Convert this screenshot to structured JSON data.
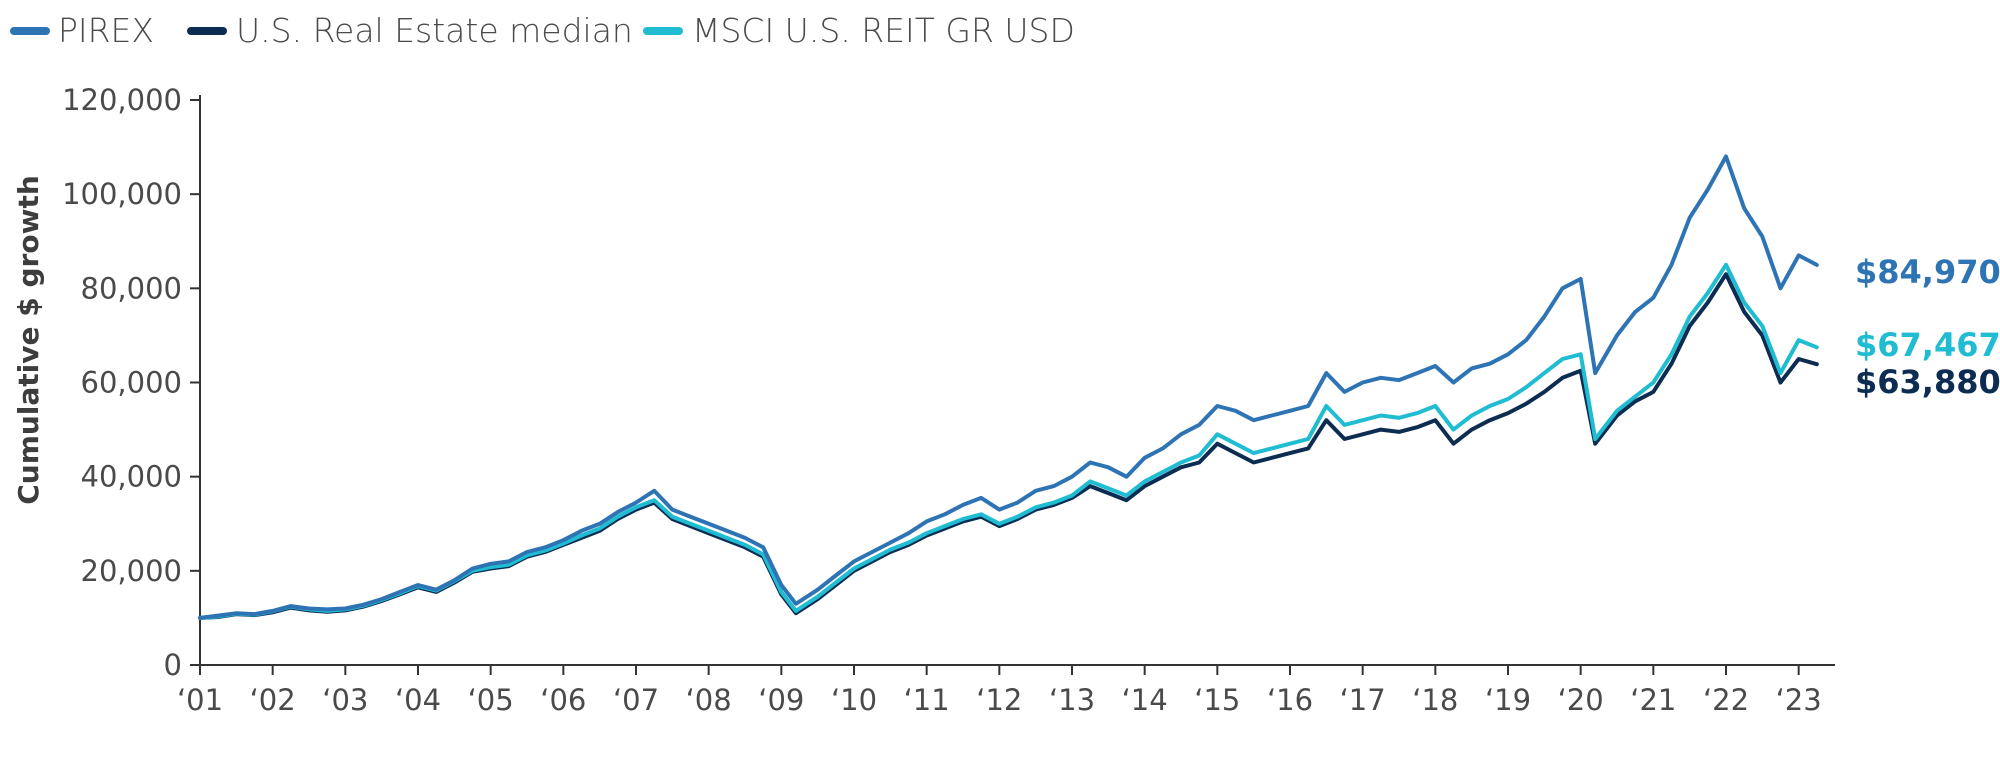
{
  "chart_data": {
    "type": "line",
    "title": "",
    "xlabel": "",
    "ylabel": "Cumulative $ growth",
    "ylim": [
      0,
      120000
    ],
    "xlim": [
      2001.0,
      2023.5
    ],
    "y_ticks": [
      0,
      20000,
      40000,
      60000,
      80000,
      100000,
      120000
    ],
    "y_tick_labels": [
      "0",
      "20,000",
      "40,000",
      "60,000",
      "80,000",
      "100,000",
      "120,000"
    ],
    "x_ticks": [
      2001,
      2002,
      2003,
      2004,
      2005,
      2006,
      2007,
      2008,
      2009,
      2010,
      2011,
      2012,
      2013,
      2014,
      2015,
      2016,
      2017,
      2018,
      2019,
      2020,
      2021,
      2022,
      2023
    ],
    "x_tick_labels": [
      "‘01",
      "‘02",
      "‘03",
      "‘04",
      "‘05",
      "‘06",
      "‘07",
      "‘08",
      "‘09",
      "‘10",
      "‘11",
      "‘12",
      "‘13",
      "‘14",
      "‘15",
      "‘16",
      "‘17",
      "‘18",
      "‘19",
      "‘20",
      "‘21",
      "‘22",
      "‘23"
    ],
    "legend_position": "top-left",
    "grid": false,
    "series": [
      {
        "name": "PIREX",
        "color": "#2e74b5",
        "end_label": "$84,970",
        "x": [
          2001.0,
          2001.25,
          2001.5,
          2001.75,
          2002.0,
          2002.25,
          2002.5,
          2002.75,
          2003.0,
          2003.25,
          2003.5,
          2003.75,
          2004.0,
          2004.25,
          2004.5,
          2004.75,
          2005.0,
          2005.25,
          2005.5,
          2005.75,
          2006.0,
          2006.25,
          2006.5,
          2006.75,
          2007.0,
          2007.25,
          2007.5,
          2007.75,
          2008.0,
          2008.25,
          2008.5,
          2008.75,
          2009.0,
          2009.2,
          2009.5,
          2009.75,
          2010.0,
          2010.25,
          2010.5,
          2010.75,
          2011.0,
          2011.25,
          2011.5,
          2011.75,
          2012.0,
          2012.25,
          2012.5,
          2012.75,
          2013.0,
          2013.25,
          2013.5,
          2013.75,
          2014.0,
          2014.25,
          2014.5,
          2014.75,
          2015.0,
          2015.25,
          2015.5,
          2015.75,
          2016.0,
          2016.25,
          2016.5,
          2016.75,
          2017.0,
          2017.25,
          2017.5,
          2017.75,
          2018.0,
          2018.25,
          2018.5,
          2018.75,
          2019.0,
          2019.25,
          2019.5,
          2019.75,
          2020.0,
          2020.2,
          2020.5,
          2020.75,
          2021.0,
          2021.25,
          2021.5,
          2021.75,
          2022.0,
          2022.25,
          2022.5,
          2022.75,
          2023.0,
          2023.25
        ],
        "y": [
          10000,
          10500,
          11000,
          10800,
          11500,
          12500,
          12000,
          11800,
          12000,
          12800,
          14000,
          15500,
          17000,
          16000,
          18000,
          20500,
          21500,
          22000,
          24000,
          25000,
          26500,
          28500,
          30000,
          32500,
          34500,
          37000,
          33000,
          31500,
          30000,
          28500,
          27000,
          25000,
          17000,
          13000,
          16000,
          19000,
          22000,
          24000,
          26000,
          28000,
          30500,
          32000,
          34000,
          35500,
          33000,
          34500,
          37000,
          38000,
          40000,
          43000,
          42000,
          40000,
          44000,
          46000,
          49000,
          51000,
          55000,
          54000,
          52000,
          53000,
          54000,
          55000,
          62000,
          58000,
          60000,
          61000,
          60500,
          62000,
          63500,
          60000,
          63000,
          64000,
          66000,
          69000,
          74000,
          80000,
          82000,
          62000,
          70000,
          75000,
          78000,
          85000,
          95000,
          101000,
          108000,
          97000,
          91000,
          80000,
          87000,
          84970
        ]
      },
      {
        "name": "U.S. Real Estate median",
        "color": "#0c2c52",
        "end_label": "$63,880",
        "x": [
          2001.0,
          2001.25,
          2001.5,
          2001.75,
          2002.0,
          2002.25,
          2002.5,
          2002.75,
          2003.0,
          2003.25,
          2003.5,
          2003.75,
          2004.0,
          2004.25,
          2004.5,
          2004.75,
          2005.0,
          2005.25,
          2005.5,
          2005.75,
          2006.0,
          2006.25,
          2006.5,
          2006.75,
          2007.0,
          2007.25,
          2007.5,
          2007.75,
          2008.0,
          2008.25,
          2008.5,
          2008.75,
          2009.0,
          2009.2,
          2009.5,
          2009.75,
          2010.0,
          2010.25,
          2010.5,
          2010.75,
          2011.0,
          2011.25,
          2011.5,
          2011.75,
          2012.0,
          2012.25,
          2012.5,
          2012.75,
          2013.0,
          2013.25,
          2013.5,
          2013.75,
          2014.0,
          2014.25,
          2014.5,
          2014.75,
          2015.0,
          2015.25,
          2015.5,
          2015.75,
          2016.0,
          2016.25,
          2016.5,
          2016.75,
          2017.0,
          2017.25,
          2017.5,
          2017.75,
          2018.0,
          2018.25,
          2018.5,
          2018.75,
          2019.0,
          2019.25,
          2019.5,
          2019.75,
          2020.0,
          2020.2,
          2020.5,
          2020.75,
          2021.0,
          2021.25,
          2021.5,
          2021.75,
          2022.0,
          2022.25,
          2022.5,
          2022.75,
          2023.0,
          2023.25
        ],
        "y": [
          10000,
          10200,
          10800,
          10600,
          11200,
          12200,
          11600,
          11300,
          11600,
          12400,
          13600,
          15000,
          16500,
          15500,
          17500,
          19800,
          20500,
          21000,
          23000,
          24000,
          25500,
          27000,
          28500,
          31000,
          33000,
          34500,
          31000,
          29500,
          28000,
          26500,
          25000,
          23000,
          15000,
          11000,
          14000,
          17000,
          20000,
          22000,
          24000,
          25500,
          27500,
          29000,
          30500,
          31500,
          29500,
          31000,
          33000,
          34000,
          35500,
          38000,
          36500,
          35000,
          38000,
          40000,
          42000,
          43000,
          47000,
          45000,
          43000,
          44000,
          45000,
          46000,
          52000,
          48000,
          49000,
          50000,
          49500,
          50500,
          52000,
          47000,
          50000,
          52000,
          53500,
          55500,
          58000,
          61000,
          62500,
          47000,
          53000,
          56000,
          58000,
          64000,
          72000,
          77000,
          83000,
          75000,
          70000,
          60000,
          65000,
          63880
        ]
      },
      {
        "name": "MSCI U.S. REIT GR USD",
        "color": "#1fbcd2",
        "end_label": "$67,467",
        "x": [
          2001.0,
          2001.25,
          2001.5,
          2001.75,
          2002.0,
          2002.25,
          2002.5,
          2002.75,
          2003.0,
          2003.25,
          2003.5,
          2003.75,
          2004.0,
          2004.25,
          2004.5,
          2004.75,
          2005.0,
          2005.25,
          2005.5,
          2005.75,
          2006.0,
          2006.25,
          2006.5,
          2006.75,
          2007.0,
          2007.25,
          2007.5,
          2007.75,
          2008.0,
          2008.25,
          2008.5,
          2008.75,
          2009.0,
          2009.2,
          2009.5,
          2009.75,
          2010.0,
          2010.25,
          2010.5,
          2010.75,
          2011.0,
          2011.25,
          2011.5,
          2011.75,
          2012.0,
          2012.25,
          2012.5,
          2012.75,
          2013.0,
          2013.25,
          2013.5,
          2013.75,
          2014.0,
          2014.25,
          2014.5,
          2014.75,
          2015.0,
          2015.25,
          2015.5,
          2015.75,
          2016.0,
          2016.25,
          2016.5,
          2016.75,
          2017.0,
          2017.25,
          2017.5,
          2017.75,
          2018.0,
          2018.25,
          2018.5,
          2018.75,
          2019.0,
          2019.25,
          2019.5,
          2019.75,
          2020.0,
          2020.2,
          2020.5,
          2020.75,
          2021.0,
          2021.25,
          2021.5,
          2021.75,
          2022.0,
          2022.25,
          2022.5,
          2022.75,
          2023.0,
          2023.25
        ],
        "y": [
          10000,
          10300,
          10900,
          10700,
          11400,
          12400,
          11800,
          11500,
          11800,
          12600,
          13800,
          15200,
          16800,
          15800,
          17800,
          20000,
          20800,
          21300,
          23300,
          24300,
          25800,
          27500,
          29000,
          31500,
          33500,
          35000,
          31500,
          30000,
          28500,
          27000,
          25500,
          23500,
          15500,
          11500,
          14500,
          17500,
          20500,
          22500,
          24500,
          26000,
          28000,
          29500,
          31000,
          32000,
          30000,
          31500,
          33500,
          34500,
          36000,
          39000,
          37500,
          36000,
          39000,
          41000,
          43000,
          44500,
          49000,
          47000,
          45000,
          46000,
          47000,
          48000,
          55000,
          51000,
          52000,
          53000,
          52500,
          53500,
          55000,
          50000,
          53000,
          55000,
          56500,
          59000,
          62000,
          65000,
          66000,
          48000,
          54000,
          57000,
          60000,
          66000,
          74000,
          79000,
          85000,
          77000,
          72000,
          62000,
          69000,
          67467
        ]
      }
    ]
  }
}
